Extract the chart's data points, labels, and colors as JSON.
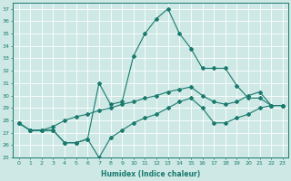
{
  "xlabel": "Humidex (Indice chaleur)",
  "xlim": [
    -0.5,
    23.5
  ],
  "ylim": [
    25,
    37.5
  ],
  "yticks": [
    25,
    26,
    27,
    28,
    29,
    30,
    31,
    32,
    33,
    34,
    35,
    36,
    37
  ],
  "xticks": [
    0,
    1,
    2,
    3,
    4,
    5,
    6,
    7,
    8,
    9,
    10,
    11,
    12,
    13,
    14,
    15,
    16,
    17,
    18,
    19,
    20,
    21,
    22,
    23
  ],
  "bg_color": "#cde8e5",
  "line_color": "#1a7a6e",
  "grid_color": "#ffffff",
  "line1_y": [
    27.8,
    27.2,
    27.2,
    27.2,
    26.2,
    26.2,
    26.5,
    25.0,
    26.6,
    27.2,
    27.8,
    28.2,
    28.5,
    29.0,
    29.5,
    29.8,
    29.0,
    27.8,
    27.8,
    28.2,
    28.5,
    29.0,
    29.2,
    29.2
  ],
  "line2_y": [
    27.8,
    27.2,
    27.2,
    27.5,
    28.0,
    28.3,
    28.5,
    28.8,
    29.0,
    29.3,
    29.5,
    29.8,
    30.0,
    30.3,
    30.5,
    30.7,
    30.0,
    29.5,
    29.3,
    29.5,
    30.0,
    30.3,
    29.2,
    29.2
  ],
  "line3_y": [
    27.8,
    27.2,
    27.2,
    27.2,
    26.2,
    26.2,
    26.5,
    31.0,
    29.3,
    29.5,
    33.2,
    35.0,
    36.2,
    37.0,
    35.0,
    33.8,
    32.2,
    32.2,
    32.2,
    30.8,
    29.8,
    29.8,
    29.2,
    29.2
  ]
}
